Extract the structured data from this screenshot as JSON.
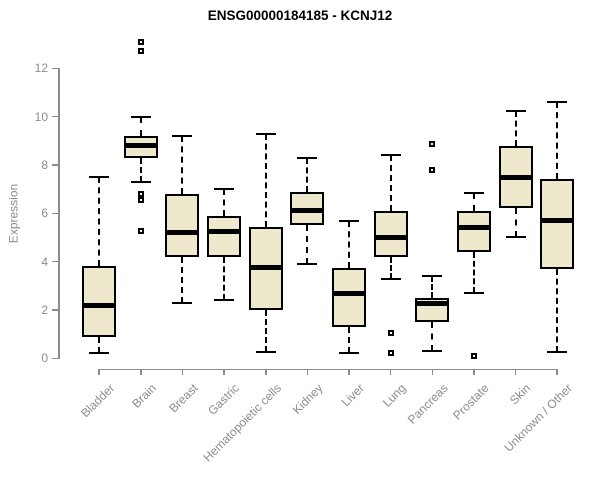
{
  "chart_data": {
    "type": "boxplot",
    "title": "ENSG00000184185 - KCNJ12",
    "ylabel": "Expression",
    "xlabel": "",
    "ylim": [
      0,
      13.4
    ],
    "yticks": [
      0,
      2,
      4,
      6,
      8,
      10,
      12
    ],
    "grid": false,
    "legend": null,
    "colors": {
      "box_fill": "#EEE8CD",
      "box_border": "#000000",
      "median": "#000000",
      "whisker": "#000000",
      "outlier": "#000000",
      "axis": "#8c8c8c",
      "title": "#000000",
      "background": "#ffffff"
    },
    "categories": [
      "Bladder",
      "Brain",
      "Breast",
      "Gastric",
      "Hematopoietic cells",
      "Kidney",
      "Liver",
      "Lung",
      "Pancreas",
      "Prostate",
      "Skin",
      "Unknown / Other"
    ],
    "boxes": [
      {
        "category": "Bladder",
        "whisker_low": 0.2,
        "q1": 0.9,
        "median": 2.2,
        "q3": 3.8,
        "whisker_high": 7.5,
        "outliers": []
      },
      {
        "category": "Brain",
        "whisker_low": 7.3,
        "q1": 8.3,
        "median": 8.8,
        "q3": 9.2,
        "whisker_high": 10.0,
        "outliers": [
          13.1,
          12.7,
          6.8,
          6.55,
          5.25
        ]
      },
      {
        "category": "Breast",
        "whisker_low": 2.3,
        "q1": 4.2,
        "median": 5.2,
        "q3": 6.8,
        "whisker_high": 9.2,
        "outliers": []
      },
      {
        "category": "Gastric",
        "whisker_low": 2.4,
        "q1": 4.2,
        "median": 5.25,
        "q3": 5.9,
        "whisker_high": 7.0,
        "outliers": []
      },
      {
        "category": "Hematopoietic cells",
        "whisker_low": 0.25,
        "q1": 2.0,
        "median": 3.75,
        "q3": 5.45,
        "whisker_high": 9.3,
        "outliers": []
      },
      {
        "category": "Kidney",
        "whisker_low": 3.9,
        "q1": 5.5,
        "median": 6.1,
        "q3": 6.9,
        "whisker_high": 8.3,
        "outliers": []
      },
      {
        "category": "Liver",
        "whisker_low": 0.2,
        "q1": 1.3,
        "median": 2.7,
        "q3": 3.75,
        "whisker_high": 5.7,
        "outliers": []
      },
      {
        "category": "Lung",
        "whisker_low": 3.3,
        "q1": 4.2,
        "median": 5.0,
        "q3": 6.1,
        "whisker_high": 8.4,
        "outliers": [
          1.05,
          0.2
        ]
      },
      {
        "category": "Pancreas",
        "whisker_low": 0.3,
        "q1": 1.5,
        "median": 2.25,
        "q3": 2.5,
        "whisker_high": 3.4,
        "outliers": [
          8.85,
          7.8
        ]
      },
      {
        "category": "Prostate",
        "whisker_low": 2.7,
        "q1": 4.4,
        "median": 5.4,
        "q3": 6.1,
        "whisker_high": 6.85,
        "outliers": [
          0.1
        ]
      },
      {
        "category": "Skin",
        "whisker_low": 5.0,
        "q1": 6.2,
        "median": 7.5,
        "q3": 8.8,
        "whisker_high": 10.25,
        "outliers": []
      },
      {
        "category": "Unknown / Other",
        "whisker_low": 0.25,
        "q1": 3.7,
        "median": 5.7,
        "q3": 7.4,
        "whisker_high": 10.6,
        "outliers": []
      }
    ]
  }
}
